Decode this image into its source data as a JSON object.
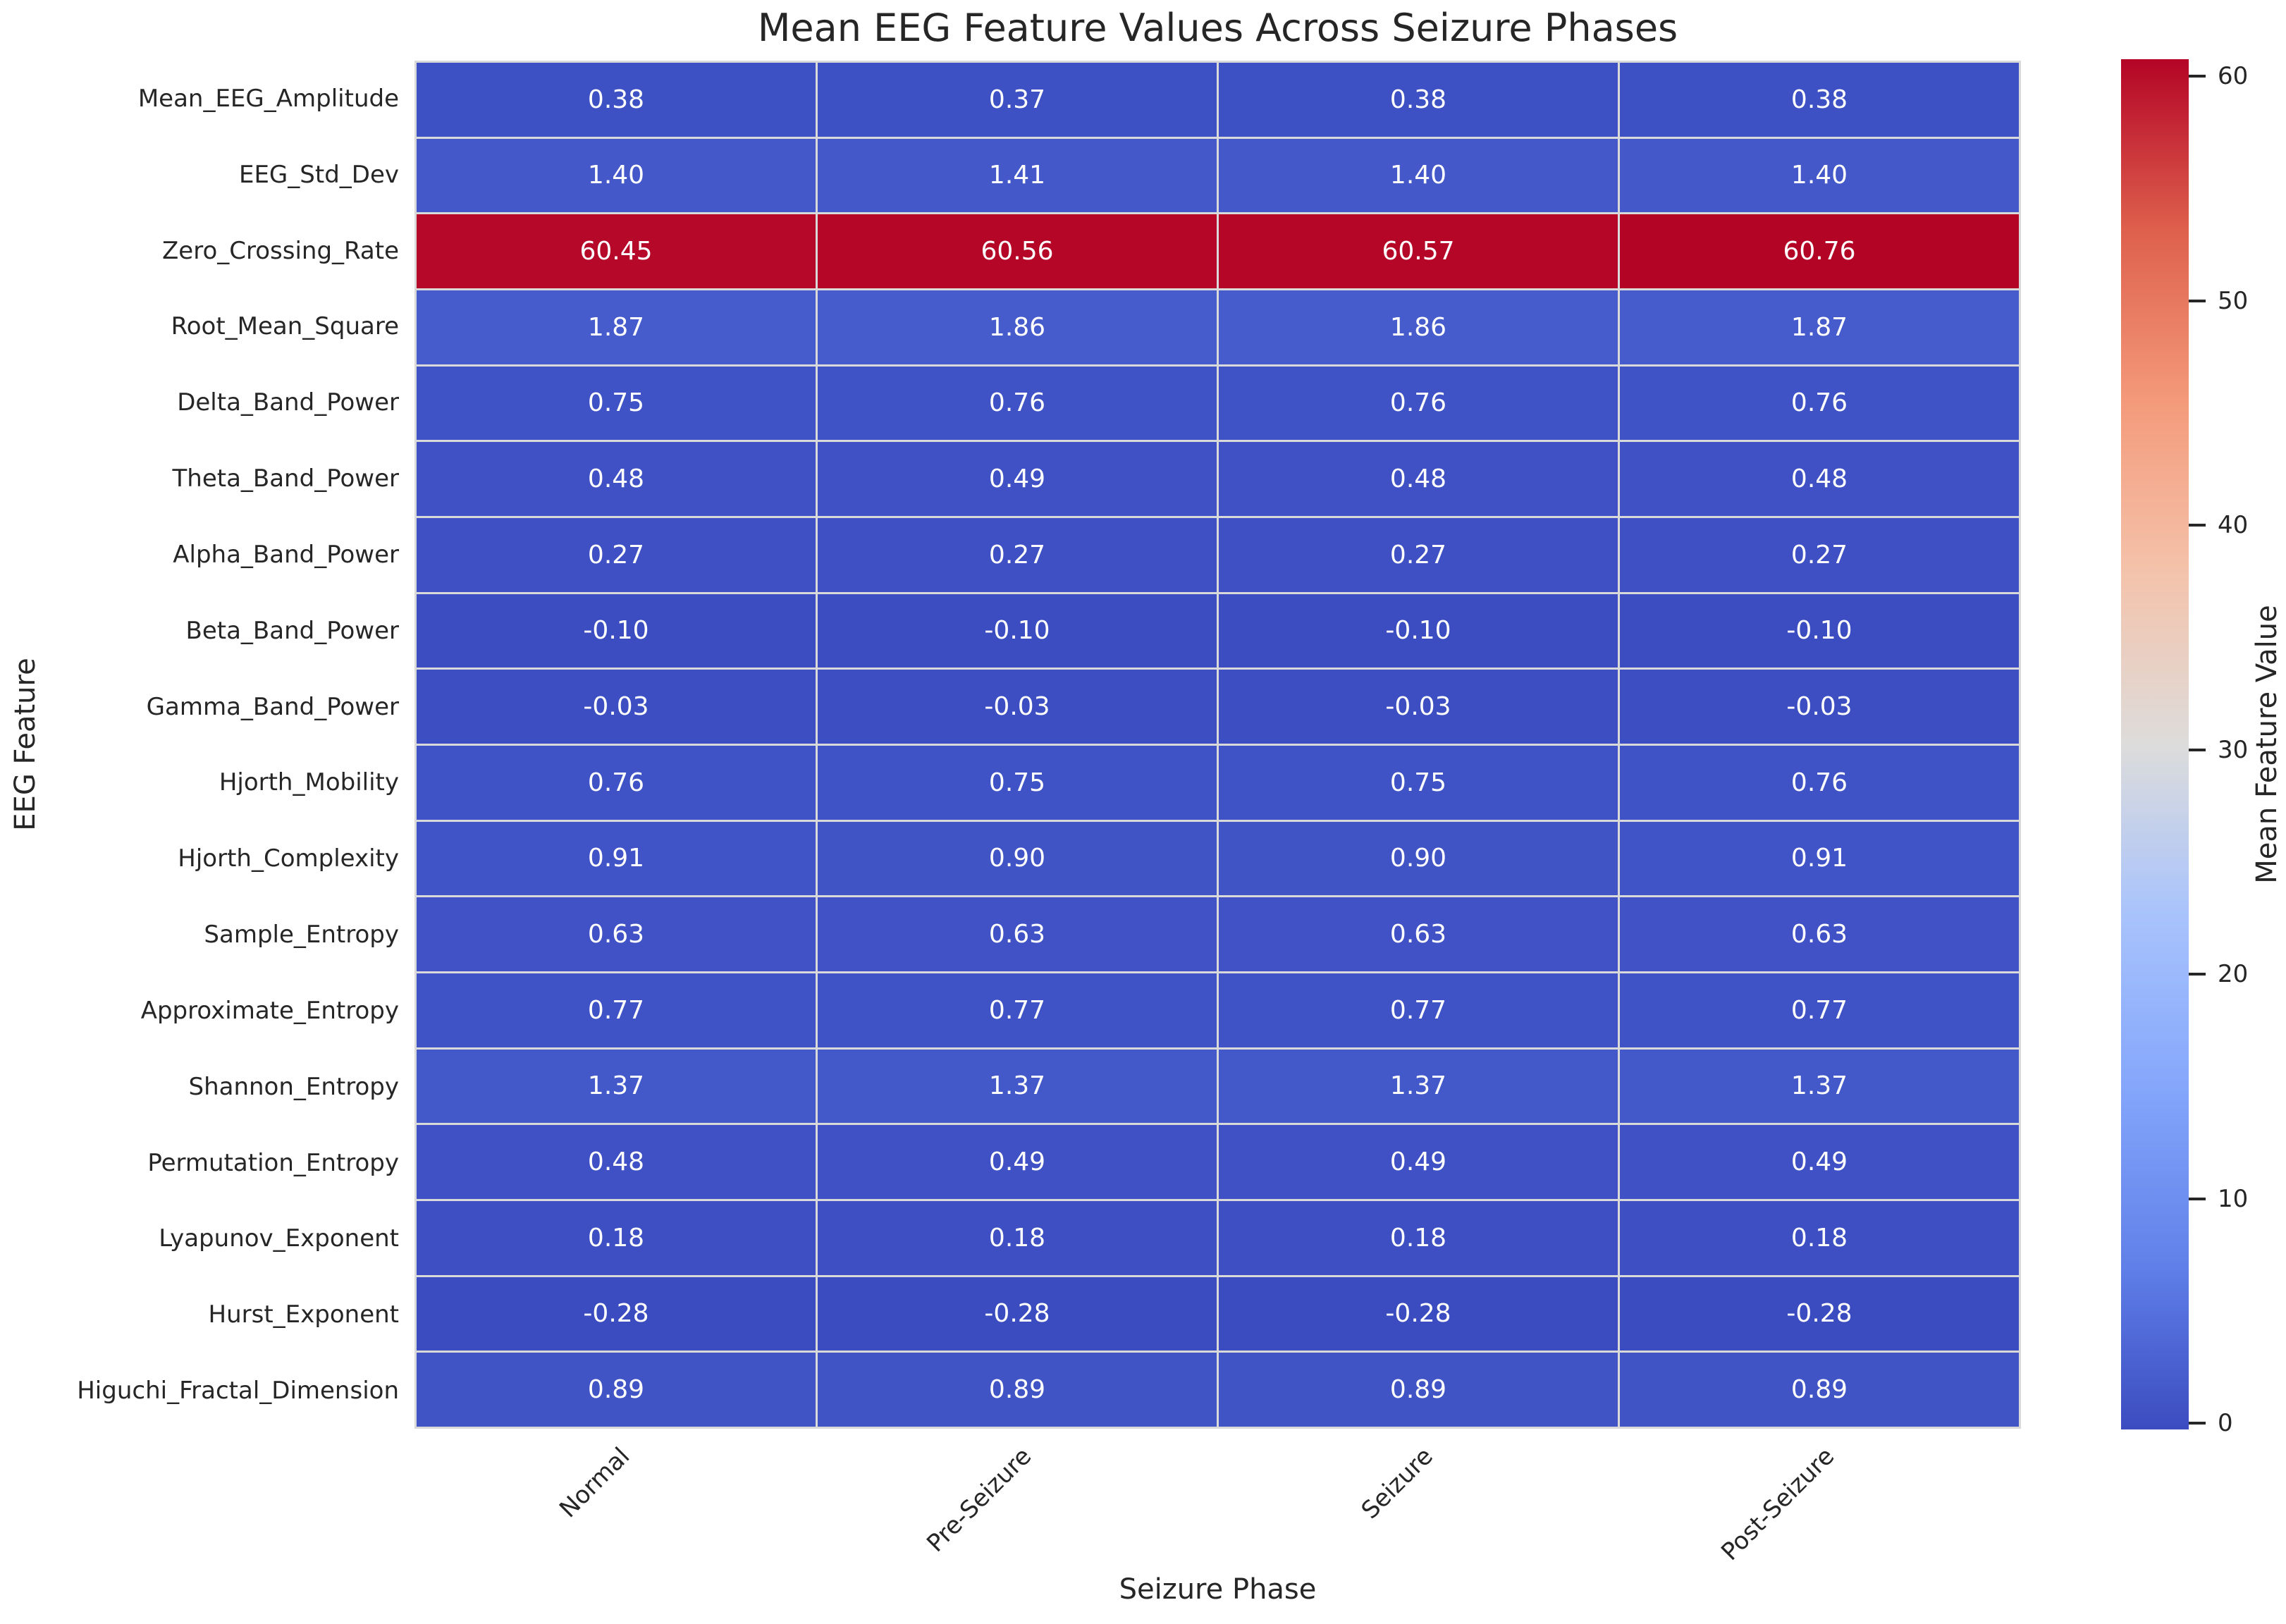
{
  "chart_data": {
    "type": "heatmap",
    "title": "Mean EEG Feature Values Across Seizure Phases",
    "xlabel": "Seizure Phase",
    "ylabel": "EEG Feature",
    "colorbar_label": "Mean Feature Value",
    "columns": [
      "Normal",
      "Pre-Seizure",
      "Seizure",
      "Post-Seizure"
    ],
    "rows": [
      "Mean_EEG_Amplitude",
      "EEG_Std_Dev",
      "Zero_Crossing_Rate",
      "Root_Mean_Square",
      "Delta_Band_Power",
      "Theta_Band_Power",
      "Alpha_Band_Power",
      "Beta_Band_Power",
      "Gamma_Band_Power",
      "Hjorth_Mobility",
      "Hjorth_Complexity",
      "Sample_Entropy",
      "Approximate_Entropy",
      "Shannon_Entropy",
      "Permutation_Entropy",
      "Lyapunov_Exponent",
      "Hurst_Exponent",
      "Higuchi_Fractal_Dimension"
    ],
    "values": [
      [
        0.38,
        0.37,
        0.38,
        0.38
      ],
      [
        1.4,
        1.41,
        1.4,
        1.4
      ],
      [
        60.45,
        60.56,
        60.57,
        60.76
      ],
      [
        1.87,
        1.86,
        1.86,
        1.87
      ],
      [
        0.75,
        0.76,
        0.76,
        0.76
      ],
      [
        0.48,
        0.49,
        0.48,
        0.48
      ],
      [
        0.27,
        0.27,
        0.27,
        0.27
      ],
      [
        -0.1,
        -0.1,
        -0.1,
        -0.1
      ],
      [
        -0.03,
        -0.03,
        -0.03,
        -0.03
      ],
      [
        0.76,
        0.75,
        0.75,
        0.76
      ],
      [
        0.91,
        0.9,
        0.9,
        0.91
      ],
      [
        0.63,
        0.63,
        0.63,
        0.63
      ],
      [
        0.77,
        0.77,
        0.77,
        0.77
      ],
      [
        1.37,
        1.37,
        1.37,
        1.37
      ],
      [
        0.48,
        0.49,
        0.49,
        0.49
      ],
      [
        0.18,
        0.18,
        0.18,
        0.18
      ],
      [
        -0.28,
        -0.28,
        -0.28,
        -0.28
      ],
      [
        0.89,
        0.89,
        0.89,
        0.89
      ]
    ],
    "value_format_decimals": 2,
    "vmin": -0.28,
    "vmax": 60.76,
    "colorbar_ticks": [
      0,
      10,
      20,
      30,
      40,
      50,
      60
    ],
    "colormap": "coolwarm",
    "legend_position": "right",
    "grid_on": true,
    "colors": {
      "cold_end": "#3B4CC0",
      "warm_end": "#B40426",
      "midpoint": "#DDDCDB",
      "gridline": "#d9d9d9",
      "text": "#262626",
      "annotation_text": "#ffffff",
      "background": "#ffffff"
    }
  }
}
